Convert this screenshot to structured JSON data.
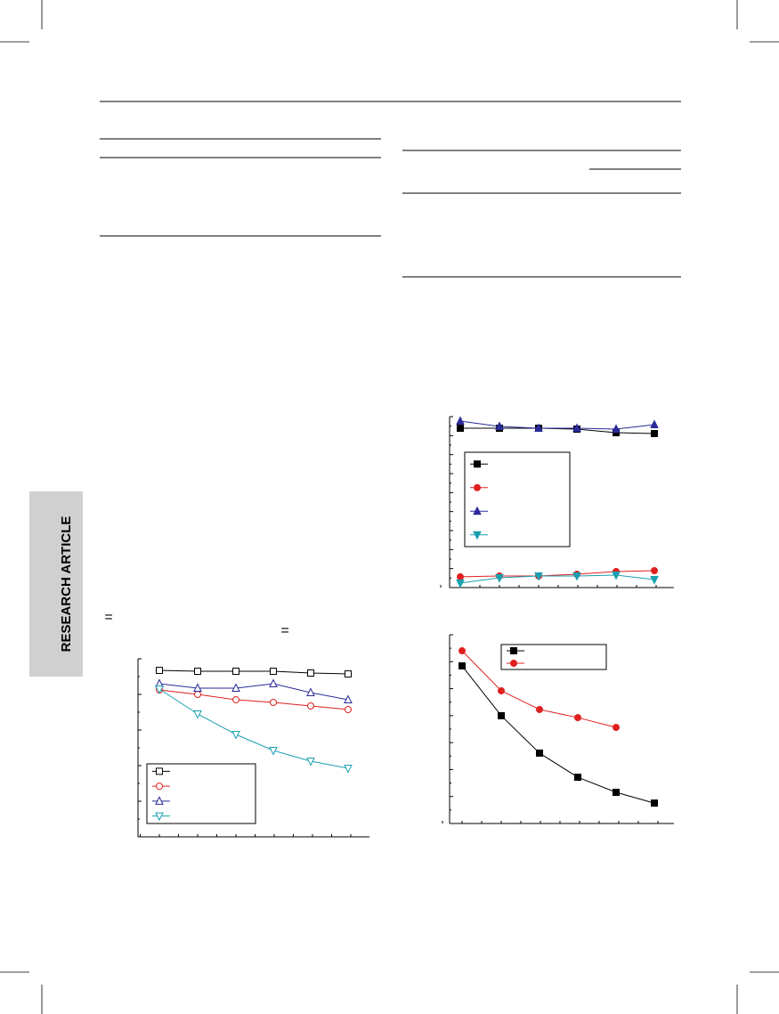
{
  "side_tab": "RESEARCH ARTICLE",
  "equations": [
    "=",
    "="
  ],
  "chart_data": [
    {
      "type": "line",
      "ylim": [
        0,
        100
      ],
      "series": [
        {
          "color": "#000000",
          "marker": "square-open",
          "values": [
            93.5,
            93,
            93,
            93,
            92,
            91.5
          ]
        },
        {
          "color": "#e02020",
          "marker": "circle-open",
          "values": [
            82.5,
            80,
            77,
            75.5,
            73.5,
            71.5
          ]
        },
        {
          "color": "#2a2a9a",
          "marker": "triangle-open",
          "values": [
            86,
            83.5,
            83.5,
            86,
            81,
            77
          ]
        },
        {
          "color": "#1aa0b0",
          "marker": "down-open",
          "values": [
            83,
            69,
            57.5,
            48.5,
            42.5,
            38.5
          ]
        }
      ]
    },
    {
      "type": "line",
      "ylim": [
        0,
        100
      ],
      "series": [
        {
          "color": "#000000",
          "marker": "square",
          "values": [
            93.2,
            93.2,
            93.2,
            92.7,
            90.6,
            90.1
          ]
        },
        {
          "color": "#e02020",
          "marker": "circle",
          "values": [
            6.3,
            6.8,
            6.8,
            7.8,
            9.4,
            9.9
          ]
        },
        {
          "color": "#2a2a9a",
          "marker": "triangle",
          "values": [
            97.4,
            94.3,
            93.2,
            93.2,
            92.7,
            95.3
          ]
        },
        {
          "color": "#1aa0b0",
          "marker": "down",
          "values": [
            2.6,
            5.7,
            6.8,
            6.8,
            7.3,
            4.7
          ]
        }
      ]
    },
    {
      "type": "line",
      "ylim": [
        0,
        100
      ],
      "series": [
        {
          "color": "#000000",
          "marker": "square",
          "values": [
            83.5,
            57.1,
            37.3,
            24.5,
            16.5,
            10.8
          ]
        },
        {
          "color": "#e02020",
          "marker": "circle",
          "values": [
            91.5,
            70.3,
            60.4,
            56.1,
            50.9,
            null
          ]
        }
      ]
    }
  ]
}
